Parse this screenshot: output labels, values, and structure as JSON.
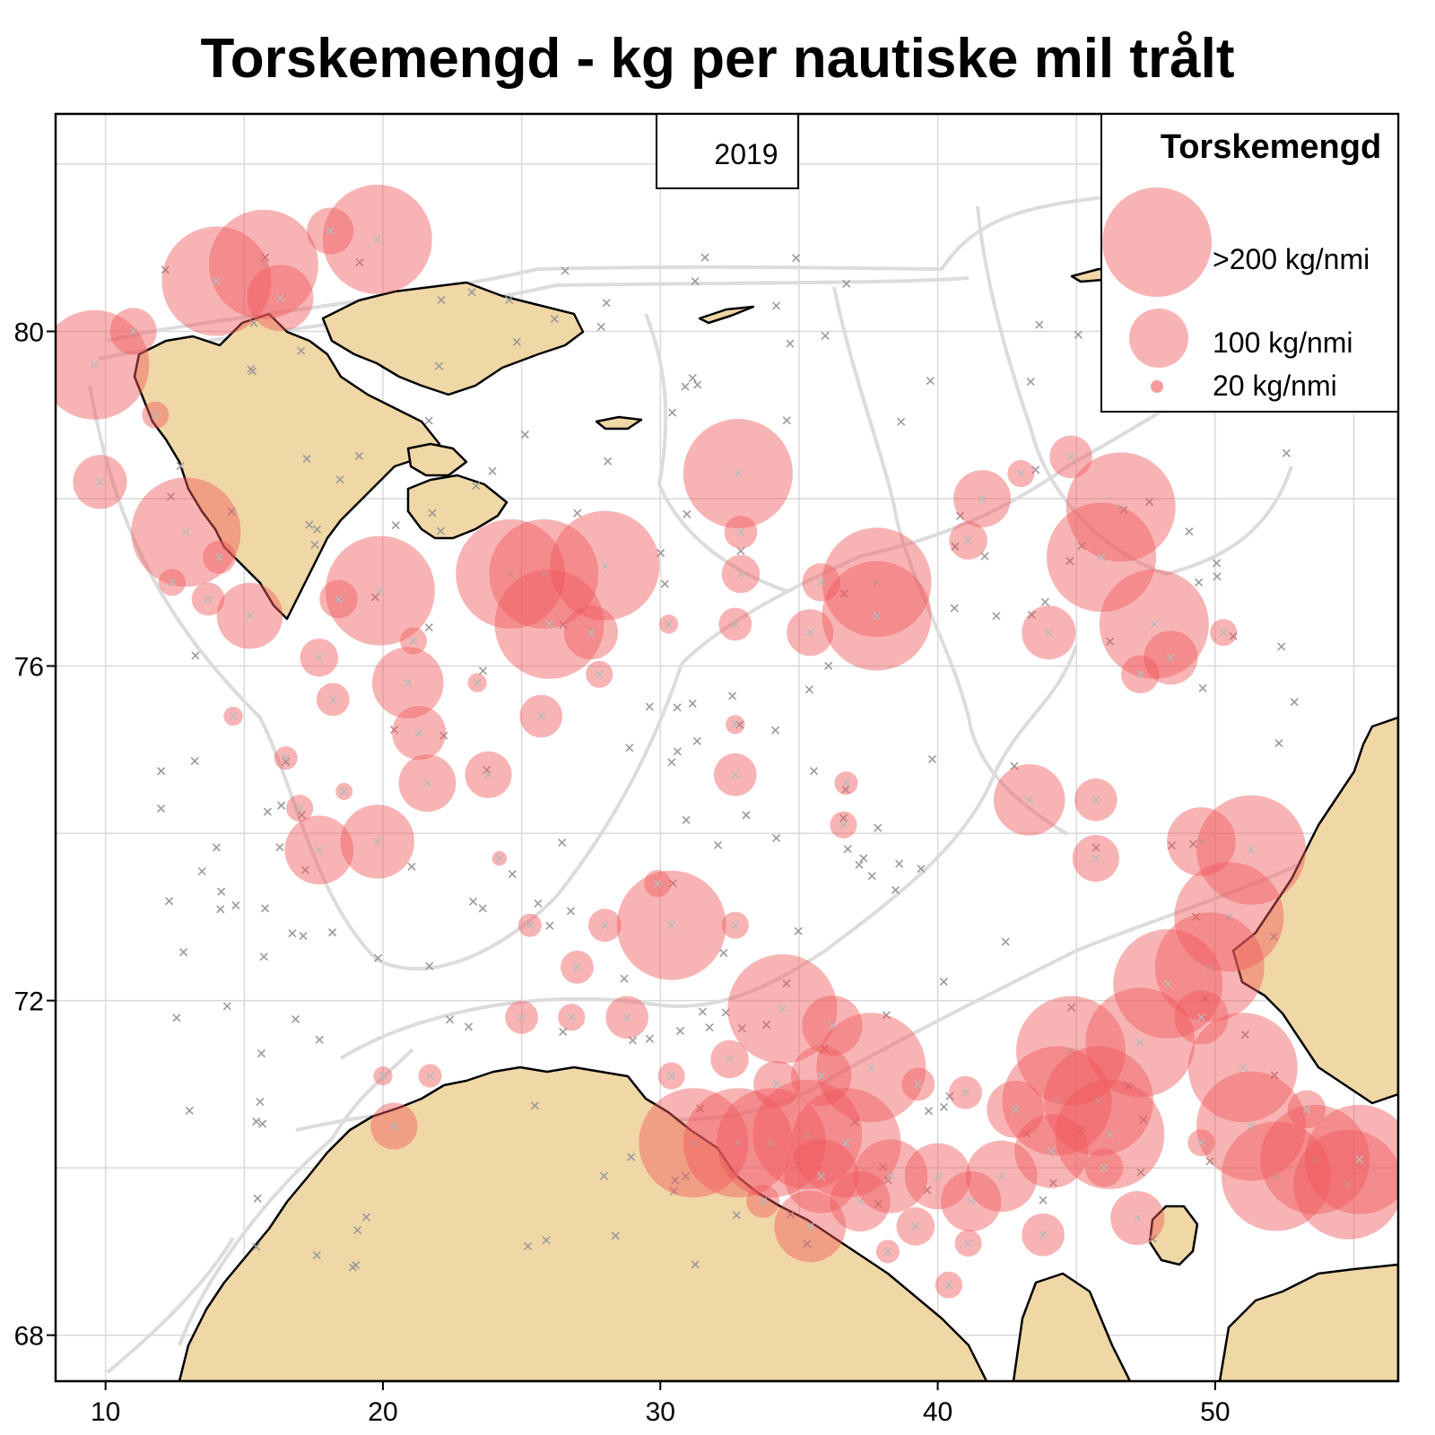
{
  "title": "Torskemengd - kg per nautiske mil trålt",
  "year_label": "2019",
  "colors": {
    "land": "#f0d7a6",
    "sea": "#ffffff",
    "bubble": "#f0585a",
    "station_cross": "#9a9a9a",
    "contour": "#dddddd",
    "grid": "#d9d9d9"
  },
  "legend": {
    "title": "Torskemengd",
    "items": [
      {
        "label": ">200 kg/nmi",
        "value": 200
      },
      {
        "label": "100 kg/nmi",
        "value": 100
      },
      {
        "label": "20 kg/nmi",
        "value": 20
      }
    ]
  },
  "axes": {
    "x_ticks": [
      {
        "value": 10,
        "label": "10"
      },
      {
        "value": 20,
        "label": "20"
      },
      {
        "value": 30,
        "label": "30"
      },
      {
        "value": 40,
        "label": "40"
      },
      {
        "value": 50,
        "label": "50"
      }
    ],
    "y_ticks": [
      {
        "value": 68,
        "label": "68"
      },
      {
        "value": 72,
        "label": "72"
      },
      {
        "value": 76,
        "label": "76"
      },
      {
        "value": 80,
        "label": "80"
      }
    ],
    "x_range": [
      8.2,
      56.6
    ],
    "y_range": [
      67.45,
      82.6
    ]
  },
  "chart_data": {
    "type": "scatter",
    "title": "Torskemengd - kg per nautiske mil trålt",
    "xlabel": "",
    "ylabel": "",
    "x_unit": "degrees east",
    "y_unit": "degrees north",
    "grid": true,
    "legend_placement": "top-right",
    "series": [
      {
        "name": "Torskemengd",
        "points": [
          {
            "lon": 15.7,
            "lat": 80.8,
            "kg": 200
          },
          {
            "lon": 14.0,
            "lat": 80.6,
            "kg": 200
          },
          {
            "lon": 16.3,
            "lat": 80.4,
            "kg": 120
          },
          {
            "lon": 19.8,
            "lat": 81.1,
            "kg": 200
          },
          {
            "lon": 18.1,
            "lat": 81.2,
            "kg": 60
          },
          {
            "lon": 9.6,
            "lat": 79.6,
            "kg": 200
          },
          {
            "lon": 11.0,
            "lat": 80.0,
            "kg": 60
          },
          {
            "lon": 9.8,
            "lat": 78.2,
            "kg": 80
          },
          {
            "lon": 11.8,
            "lat": 79.0,
            "kg": 20
          },
          {
            "lon": 12.9,
            "lat": 77.6,
            "kg": 200
          },
          {
            "lon": 14.1,
            "lat": 77.3,
            "kg": 30
          },
          {
            "lon": 15.2,
            "lat": 76.6,
            "kg": 120
          },
          {
            "lon": 13.7,
            "lat": 76.8,
            "kg": 30
          },
          {
            "lon": 12.4,
            "lat": 77.0,
            "kg": 20
          },
          {
            "lon": 19.9,
            "lat": 76.9,
            "kg": 200
          },
          {
            "lon": 18.4,
            "lat": 76.8,
            "kg": 40
          },
          {
            "lon": 24.6,
            "lat": 77.1,
            "kg": 200
          },
          {
            "lon": 25.8,
            "lat": 77.1,
            "kg": 200
          },
          {
            "lon": 28.0,
            "lat": 77.2,
            "kg": 200
          },
          {
            "lon": 26.0,
            "lat": 76.5,
            "kg": 200
          },
          {
            "lon": 27.5,
            "lat": 76.4,
            "kg": 80
          },
          {
            "lon": 17.7,
            "lat": 76.1,
            "kg": 40
          },
          {
            "lon": 20.9,
            "lat": 75.8,
            "kg": 140
          },
          {
            "lon": 18.2,
            "lat": 75.6,
            "kg": 30
          },
          {
            "lon": 21.3,
            "lat": 75.2,
            "kg": 80
          },
          {
            "lon": 21.6,
            "lat": 74.6,
            "kg": 90
          },
          {
            "lon": 23.8,
            "lat": 74.7,
            "kg": 60
          },
          {
            "lon": 25.7,
            "lat": 75.4,
            "kg": 50
          },
          {
            "lon": 27.8,
            "lat": 75.9,
            "kg": 20
          },
          {
            "lon": 16.5,
            "lat": 74.9,
            "kg": 15
          },
          {
            "lon": 17.0,
            "lat": 74.3,
            "kg": 20
          },
          {
            "lon": 17.7,
            "lat": 73.8,
            "kg": 130
          },
          {
            "lon": 19.8,
            "lat": 73.9,
            "kg": 150
          },
          {
            "lon": 14.6,
            "lat": 75.4,
            "kg": 10
          },
          {
            "lon": 23.4,
            "lat": 75.8,
            "kg": 10
          },
          {
            "lon": 21.1,
            "lat": 76.3,
            "kg": 20
          },
          {
            "lon": 32.8,
            "lat": 78.3,
            "kg": 200
          },
          {
            "lon": 32.9,
            "lat": 77.6,
            "kg": 30
          },
          {
            "lon": 32.9,
            "lat": 77.1,
            "kg": 40
          },
          {
            "lon": 32.7,
            "lat": 76.5,
            "kg": 30
          },
          {
            "lon": 30.3,
            "lat": 76.5,
            "kg": 10
          },
          {
            "lon": 37.8,
            "lat": 77.0,
            "kg": 200
          },
          {
            "lon": 37.8,
            "lat": 76.6,
            "kg": 200
          },
          {
            "lon": 35.4,
            "lat": 76.4,
            "kg": 60
          },
          {
            "lon": 35.8,
            "lat": 77.0,
            "kg": 40
          },
          {
            "lon": 41.6,
            "lat": 78.0,
            "kg": 90
          },
          {
            "lon": 41.1,
            "lat": 77.5,
            "kg": 40
          },
          {
            "lon": 43.0,
            "lat": 78.3,
            "kg": 20
          },
          {
            "lon": 44.8,
            "lat": 78.5,
            "kg": 50
          },
          {
            "lon": 46.6,
            "lat": 77.9,
            "kg": 200
          },
          {
            "lon": 45.9,
            "lat": 77.3,
            "kg": 200
          },
          {
            "lon": 47.8,
            "lat": 76.5,
            "kg": 200
          },
          {
            "lon": 48.4,
            "lat": 76.1,
            "kg": 80
          },
          {
            "lon": 47.3,
            "lat": 75.9,
            "kg": 40
          },
          {
            "lon": 44.0,
            "lat": 76.4,
            "kg": 80
          },
          {
            "lon": 50.3,
            "lat": 76.4,
            "kg": 20
          },
          {
            "lon": 32.7,
            "lat": 74.7,
            "kg": 50
          },
          {
            "lon": 36.7,
            "lat": 74.6,
            "kg": 15
          },
          {
            "lon": 36.6,
            "lat": 74.1,
            "kg": 20
          },
          {
            "lon": 32.7,
            "lat": 75.3,
            "kg": 10
          },
          {
            "lon": 43.3,
            "lat": 74.4,
            "kg": 140
          },
          {
            "lon": 45.7,
            "lat": 74.4,
            "kg": 50
          },
          {
            "lon": 45.7,
            "lat": 73.7,
            "kg": 60
          },
          {
            "lon": 49.5,
            "lat": 73.9,
            "kg": 130
          },
          {
            "lon": 51.3,
            "lat": 73.8,
            "kg": 200
          },
          {
            "lon": 50.5,
            "lat": 73.0,
            "kg": 200
          },
          {
            "lon": 49.8,
            "lat": 72.4,
            "kg": 200
          },
          {
            "lon": 48.3,
            "lat": 72.2,
            "kg": 200
          },
          {
            "lon": 47.3,
            "lat": 71.5,
            "kg": 200
          },
          {
            "lon": 49.5,
            "lat": 71.8,
            "kg": 80
          },
          {
            "lon": 30.4,
            "lat": 72.9,
            "kg": 200
          },
          {
            "lon": 28.0,
            "lat": 72.9,
            "kg": 30
          },
          {
            "lon": 29.9,
            "lat": 73.4,
            "kg": 20
          },
          {
            "lon": 32.7,
            "lat": 72.9,
            "kg": 20
          },
          {
            "lon": 25.3,
            "lat": 72.9,
            "kg": 15
          },
          {
            "lon": 27.0,
            "lat": 72.4,
            "kg": 30
          },
          {
            "lon": 25.0,
            "lat": 71.8,
            "kg": 30
          },
          {
            "lon": 26.8,
            "lat": 71.8,
            "kg": 20
          },
          {
            "lon": 28.8,
            "lat": 71.8,
            "kg": 50
          },
          {
            "lon": 34.4,
            "lat": 71.9,
            "kg": 200
          },
          {
            "lon": 36.2,
            "lat": 71.7,
            "kg": 100
          },
          {
            "lon": 37.6,
            "lat": 71.2,
            "kg": 200
          },
          {
            "lon": 35.8,
            "lat": 71.1,
            "kg": 100
          },
          {
            "lon": 34.2,
            "lat": 71.0,
            "kg": 60
          },
          {
            "lon": 32.5,
            "lat": 71.3,
            "kg": 40
          },
          {
            "lon": 30.4,
            "lat": 71.1,
            "kg": 20
          },
          {
            "lon": 39.3,
            "lat": 71.0,
            "kg": 30
          },
          {
            "lon": 41.0,
            "lat": 70.9,
            "kg": 30
          },
          {
            "lon": 44.8,
            "lat": 71.4,
            "kg": 200
          },
          {
            "lon": 44.3,
            "lat": 70.8,
            "kg": 200
          },
          {
            "lon": 45.8,
            "lat": 70.8,
            "kg": 200
          },
          {
            "lon": 42.8,
            "lat": 70.7,
            "kg": 90
          },
          {
            "lon": 46.2,
            "lat": 70.4,
            "kg": 200
          },
          {
            "lon": 51.0,
            "lat": 71.2,
            "kg": 200
          },
          {
            "lon": 51.3,
            "lat": 70.5,
            "kg": 200
          },
          {
            "lon": 52.2,
            "lat": 69.9,
            "kg": 200
          },
          {
            "lon": 53.6,
            "lat": 70.1,
            "kg": 200
          },
          {
            "lon": 54.8,
            "lat": 69.8,
            "kg": 200
          },
          {
            "lon": 55.2,
            "lat": 70.1,
            "kg": 200
          },
          {
            "lon": 53.3,
            "lat": 70.7,
            "kg": 40
          },
          {
            "lon": 49.5,
            "lat": 70.3,
            "kg": 20
          },
          {
            "lon": 31.2,
            "lat": 70.3,
            "kg": 200
          },
          {
            "lon": 32.8,
            "lat": 70.3,
            "kg": 200
          },
          {
            "lon": 34.0,
            "lat": 70.3,
            "kg": 200
          },
          {
            "lon": 35.3,
            "lat": 70.4,
            "kg": 200
          },
          {
            "lon": 36.7,
            "lat": 70.3,
            "kg": 200
          },
          {
            "lon": 35.8,
            "lat": 69.9,
            "kg": 150
          },
          {
            "lon": 37.2,
            "lat": 69.6,
            "kg": 100
          },
          {
            "lon": 38.3,
            "lat": 69.9,
            "kg": 150
          },
          {
            "lon": 40.0,
            "lat": 69.9,
            "kg": 120
          },
          {
            "lon": 41.2,
            "lat": 69.6,
            "kg": 100
          },
          {
            "lon": 42.3,
            "lat": 69.9,
            "kg": 140
          },
          {
            "lon": 44.1,
            "lat": 70.2,
            "kg": 150
          },
          {
            "lon": 33.7,
            "lat": 69.6,
            "kg": 30
          },
          {
            "lon": 35.4,
            "lat": 69.3,
            "kg": 140
          },
          {
            "lon": 39.2,
            "lat": 69.3,
            "kg": 40
          },
          {
            "lon": 41.1,
            "lat": 69.1,
            "kg": 20
          },
          {
            "lon": 43.8,
            "lat": 69.2,
            "kg": 50
          },
          {
            "lon": 47.2,
            "lat": 69.4,
            "kg": 80
          },
          {
            "lon": 46.0,
            "lat": 70.0,
            "kg": 40
          },
          {
            "lon": 38.2,
            "lat": 69.0,
            "kg": 15
          },
          {
            "lon": 40.4,
            "lat": 68.6,
            "kg": 20
          },
          {
            "lon": 20.4,
            "lat": 70.5,
            "kg": 60
          },
          {
            "lon": 20.0,
            "lat": 71.1,
            "kg": 10
          },
          {
            "lon": 21.7,
            "lat": 71.1,
            "kg": 15
          },
          {
            "lon": 18.6,
            "lat": 74.5,
            "kg": 8
          },
          {
            "lon": 24.2,
            "lat": 73.7,
            "kg": 6
          }
        ]
      }
    ]
  },
  "stations_note_count_hint": "",
  "places": {}
}
